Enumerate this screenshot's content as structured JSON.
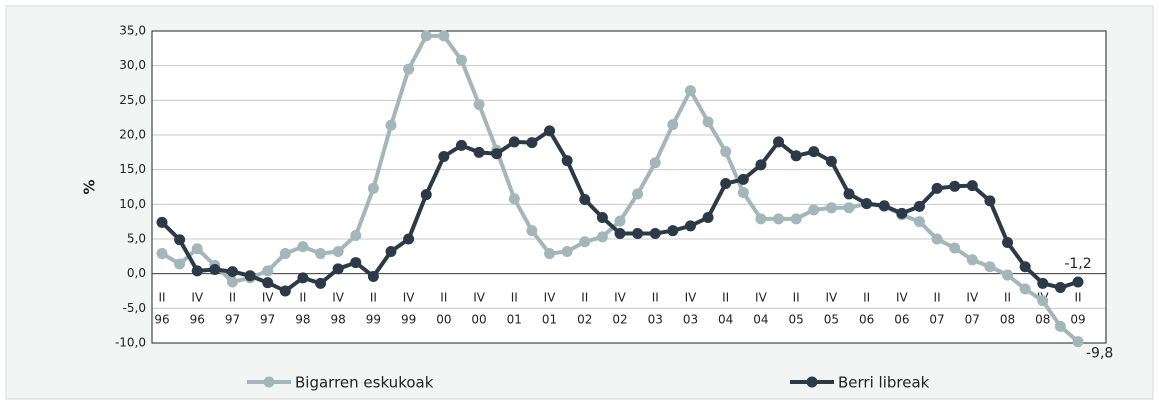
{
  "chart_data": {
    "type": "line",
    "y_label": "%",
    "categories": [
      "II",
      null,
      "IV",
      null,
      "II",
      null,
      "IV",
      null,
      "II",
      null,
      "IV",
      null,
      "II",
      null,
      "IV",
      null,
      "II",
      null,
      "IV",
      null,
      "II",
      null,
      "IV",
      null,
      "II",
      null,
      "IV",
      null,
      "II",
      null,
      "IV",
      null,
      "II",
      null,
      "IV",
      null,
      "II",
      null,
      "IV",
      null,
      "II",
      null,
      "IV",
      null,
      "II",
      null,
      "IV",
      null,
      "II",
      null,
      "IV",
      null,
      "II"
    ],
    "category_years": [
      "96",
      null,
      "96",
      null,
      "97",
      null,
      "97",
      null,
      "98",
      null,
      "98",
      null,
      "99",
      null,
      "99",
      null,
      "00",
      null,
      "00",
      null,
      "01",
      null,
      "01",
      null,
      "02",
      null,
      "02",
      null,
      "03",
      null,
      "03",
      null,
      "04",
      null,
      "04",
      null,
      "05",
      null,
      "05",
      null,
      "06",
      null,
      "06",
      null,
      "07",
      null,
      "07",
      null,
      "08",
      null,
      "08",
      null,
      "09"
    ],
    "series": [
      {
        "name": "Bigarren eskukoak",
        "color": "#a3b6b9",
        "values": [
          2.9,
          1.4,
          3.6,
          1.2,
          -1.2,
          -0.6,
          0.4,
          2.9,
          3.9,
          2.9,
          3.2,
          5.5,
          12.3,
          21.4,
          29.5,
          34.3,
          34.3,
          30.8,
          24.4,
          17.8,
          10.8,
          6.2,
          2.9,
          3.2,
          4.6,
          5.3,
          7.6,
          11.5,
          16.0,
          21.5,
          26.4,
          21.9,
          17.6,
          11.7,
          7.9,
          7.9,
          7.9,
          9.2,
          9.5,
          9.5,
          10.1,
          9.7,
          8.5,
          7.5,
          5.0,
          3.7,
          2.0,
          1.0,
          -0.2,
          -2.2,
          -3.9,
          -7.6,
          -9.8
        ],
        "value_labels": [
          null,
          null,
          null,
          null,
          null,
          null,
          null,
          null,
          null,
          null,
          null,
          null,
          null,
          null,
          null,
          null,
          null,
          null,
          null,
          null,
          null,
          null,
          null,
          null,
          null,
          null,
          null,
          null,
          null,
          null,
          null,
          null,
          null,
          null,
          null,
          null,
          null,
          null,
          null,
          null,
          null,
          null,
          null,
          null,
          null,
          null,
          null,
          null,
          null,
          null,
          null,
          null,
          "-9,8"
        ]
      },
      {
        "name": "Berri libreak",
        "color": "#2b3a46",
        "values": [
          7.4,
          4.9,
          0.4,
          0.6,
          0.3,
          -0.3,
          -1.3,
          -2.5,
          -0.6,
          -1.4,
          0.7,
          1.6,
          -0.4,
          3.2,
          5.0,
          11.4,
          16.9,
          18.5,
          17.5,
          17.3,
          19.0,
          18.9,
          20.6,
          16.3,
          10.7,
          8.1,
          5.8,
          5.8,
          5.8,
          6.2,
          6.9,
          8.1,
          13.0,
          13.6,
          15.7,
          19.0,
          17.0,
          17.6,
          16.2,
          11.5,
          10.1,
          9.8,
          8.7,
          9.7,
          12.3,
          12.6,
          12.7,
          10.5,
          4.5,
          1.0,
          -1.4,
          -2.0,
          -1.2
        ],
        "value_labels": [
          null,
          null,
          null,
          null,
          null,
          null,
          null,
          null,
          null,
          null,
          null,
          null,
          null,
          null,
          null,
          null,
          null,
          null,
          null,
          null,
          null,
          null,
          null,
          null,
          null,
          null,
          null,
          null,
          null,
          null,
          null,
          null,
          null,
          null,
          null,
          null,
          null,
          null,
          null,
          null,
          null,
          null,
          null,
          null,
          null,
          null,
          null,
          null,
          null,
          null,
          null,
          null,
          "-1,2"
        ]
      }
    ],
    "ylim": [
      -10,
      35
    ],
    "yticks": [
      {
        "value": -10,
        "label": "-10,0"
      },
      {
        "value": -5,
        "label": "-5,0"
      },
      {
        "value": 0,
        "label": "0,0"
      },
      {
        "value": 5,
        "label": "5,0"
      },
      {
        "value": 10,
        "label": "10,0"
      },
      {
        "value": 15,
        "label": "15,0"
      },
      {
        "value": 20,
        "label": "20,0"
      },
      {
        "value": 25,
        "label": "25,0"
      },
      {
        "value": 30,
        "label": "30,0"
      },
      {
        "value": 35,
        "label": "35,0"
      }
    ],
    "grid": true
  }
}
